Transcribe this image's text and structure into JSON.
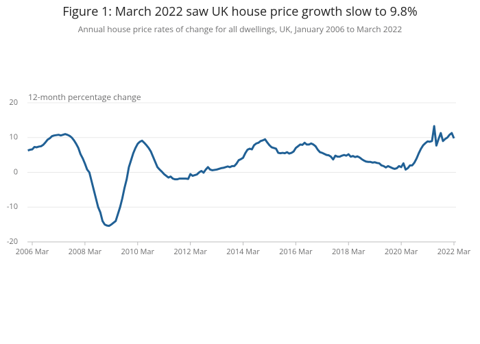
{
  "chart_data": {
    "type": "line",
    "title": "Figure 1: March 2022 saw UK house price growth slow to 9.8%",
    "subtitle": "Annual house price rates of change for all dwellings, UK, January 2006 to March 2022",
    "y_label": "12-month percentage change",
    "x": [
      "2006 Jan",
      "2006 Feb",
      "2006 Mar",
      "2006 Apr",
      "2006 May",
      "2006 Jun",
      "2006 Jul",
      "2006 Aug",
      "2006 Sep",
      "2006 Oct",
      "2006 Nov",
      "2006 Dec",
      "2007 Jan",
      "2007 Feb",
      "2007 Mar",
      "2007 Apr",
      "2007 May",
      "2007 Jun",
      "2007 Jul",
      "2007 Aug",
      "2007 Sep",
      "2007 Oct",
      "2007 Nov",
      "2007 Dec",
      "2008 Jan",
      "2008 Feb",
      "2008 Mar",
      "2008 Apr",
      "2008 May",
      "2008 Jun",
      "2008 Jul",
      "2008 Aug",
      "2008 Sep",
      "2008 Oct",
      "2008 Nov",
      "2008 Dec",
      "2009 Jan",
      "2009 Feb",
      "2009 Mar",
      "2009 Apr",
      "2009 May",
      "2009 Jun",
      "2009 Jul",
      "2009 Aug",
      "2009 Sep",
      "2009 Oct",
      "2009 Nov",
      "2009 Dec",
      "2010 Jan",
      "2010 Feb",
      "2010 Mar",
      "2010 Apr",
      "2010 May",
      "2010 Jun",
      "2010 Jul",
      "2010 Aug",
      "2010 Sep",
      "2010 Oct",
      "2010 Nov",
      "2010 Dec",
      "2011 Jan",
      "2011 Feb",
      "2011 Mar",
      "2011 Apr",
      "2011 May",
      "2011 Jun",
      "2011 Jul",
      "2011 Aug",
      "2011 Sep",
      "2011 Oct",
      "2011 Nov",
      "2011 Dec",
      "2012 Jan",
      "2012 Feb",
      "2012 Mar",
      "2012 Apr",
      "2012 May",
      "2012 Jun",
      "2012 Jul",
      "2012 Aug",
      "2012 Sep",
      "2012 Oct",
      "2012 Nov",
      "2012 Dec",
      "2013 Jan",
      "2013 Feb",
      "2013 Mar",
      "2013 Apr",
      "2013 May",
      "2013 Jun",
      "2013 Jul",
      "2013 Aug",
      "2013 Sep",
      "2013 Oct",
      "2013 Nov",
      "2013 Dec",
      "2014 Jan",
      "2014 Feb",
      "2014 Mar",
      "2014 Apr",
      "2014 May",
      "2014 Jun",
      "2014 Jul",
      "2014 Aug",
      "2014 Sep",
      "2014 Oct",
      "2014 Nov",
      "2014 Dec",
      "2015 Jan",
      "2015 Feb",
      "2015 Mar",
      "2015 Apr",
      "2015 May",
      "2015 Jun",
      "2015 Jul",
      "2015 Aug",
      "2015 Sep",
      "2015 Oct",
      "2015 Nov",
      "2015 Dec",
      "2016 Jan",
      "2016 Feb",
      "2016 Mar",
      "2016 Apr",
      "2016 May",
      "2016 Jun",
      "2016 Jul",
      "2016 Aug",
      "2016 Sep",
      "2016 Oct",
      "2016 Nov",
      "2016 Dec",
      "2017 Jan",
      "2017 Feb",
      "2017 Mar",
      "2017 Apr",
      "2017 May",
      "2017 Jun",
      "2017 Jul",
      "2017 Aug",
      "2017 Sep",
      "2017 Oct",
      "2017 Nov",
      "2017 Dec",
      "2018 Jan",
      "2018 Feb",
      "2018 Mar",
      "2018 Apr",
      "2018 May",
      "2018 Jun",
      "2018 Jul",
      "2018 Aug",
      "2018 Sep",
      "2018 Oct",
      "2018 Nov",
      "2018 Dec",
      "2019 Jan",
      "2019 Feb",
      "2019 Mar",
      "2019 Apr",
      "2019 May",
      "2019 Jun",
      "2019 Jul",
      "2019 Aug",
      "2019 Sep",
      "2019 Oct",
      "2019 Nov",
      "2019 Dec",
      "2020 Jan",
      "2020 Feb",
      "2020 Mar",
      "2020 Apr",
      "2020 May",
      "2020 Jun",
      "2020 Jul",
      "2020 Aug",
      "2020 Sep",
      "2020 Oct",
      "2020 Nov",
      "2020 Dec",
      "2021 Jan",
      "2021 Feb",
      "2021 Mar",
      "2021 Apr",
      "2021 May",
      "2021 Jun",
      "2021 Jul",
      "2021 Aug",
      "2021 Sep",
      "2021 Oct",
      "2021 Nov",
      "2021 Dec",
      "2022 Jan",
      "2022 Feb",
      "2022 Mar"
    ],
    "series": [
      {
        "name": "UK",
        "color": "#206095",
        "values": [
          6.3,
          6.5,
          6.6,
          7.3,
          7.2,
          7.4,
          7.5,
          7.9,
          8.6,
          9.4,
          9.8,
          10.4,
          10.6,
          10.7,
          10.8,
          10.6,
          10.8,
          11.0,
          10.8,
          10.5,
          10.0,
          9.2,
          8.2,
          7.0,
          5.2,
          4.0,
          2.5,
          0.8,
          0.0,
          -2.5,
          -5.0,
          -7.5,
          -10.0,
          -11.5,
          -14.0,
          -15.0,
          -15.3,
          -15.4,
          -15.0,
          -14.5,
          -14.0,
          -12.0,
          -10.0,
          -7.5,
          -4.5,
          -2.0,
          1.5,
          3.5,
          5.5,
          7.0,
          8.2,
          8.8,
          9.1,
          8.5,
          7.8,
          7.0,
          6.0,
          4.5,
          3.0,
          1.5,
          0.8,
          0.2,
          -0.5,
          -1.0,
          -1.5,
          -1.2,
          -1.8,
          -2.0,
          -2.0,
          -1.8,
          -1.8,
          -1.8,
          -1.8,
          -1.9,
          -0.5,
          -1.0,
          -0.8,
          -0.6,
          0.0,
          0.4,
          -0.1,
          0.8,
          1.5,
          0.8,
          0.6,
          0.7,
          0.8,
          1.0,
          1.2,
          1.3,
          1.5,
          1.7,
          1.5,
          1.8,
          1.8,
          2.5,
          3.5,
          3.8,
          4.2,
          5.5,
          6.5,
          6.8,
          6.6,
          7.8,
          8.3,
          8.5,
          9.0,
          9.2,
          9.5,
          8.6,
          7.8,
          7.2,
          7.0,
          6.8,
          5.6,
          5.5,
          5.6,
          5.5,
          5.8,
          5.4,
          5.6,
          6.0,
          7.0,
          7.5,
          8.0,
          7.9,
          8.5,
          8.0,
          8.0,
          8.3,
          8.0,
          7.5,
          6.5,
          5.8,
          5.6,
          5.3,
          5.0,
          4.9,
          4.5,
          3.7,
          4.8,
          4.5,
          4.5,
          4.8,
          5.0,
          4.8,
          5.2,
          4.5,
          4.7,
          4.4,
          4.6,
          4.3,
          3.8,
          3.4,
          3.1,
          3.0,
          3.0,
          2.8,
          2.9,
          2.7,
          2.6,
          2.0,
          1.8,
          1.4,
          1.8,
          1.5,
          1.2,
          1.0,
          1.2,
          1.8,
          1.5,
          2.6,
          0.8,
          1.2,
          2.0,
          2.0,
          2.8,
          4.0,
          5.5,
          6.8,
          7.8,
          8.4,
          8.9,
          8.8,
          9.0,
          13.3,
          7.7,
          9.6,
          11.3,
          9.0,
          9.6,
          10.0,
          10.8,
          11.3,
          9.8
        ]
      }
    ],
    "xticks": [
      "2006 Mar",
      "2008 Mar",
      "2010 Mar",
      "2012 Mar",
      "2014 Mar",
      "2016 Mar",
      "2018 Mar",
      "2020 Mar",
      "2022 Mar"
    ],
    "ylim": [
      -20,
      20
    ],
    "yticks": [
      -20,
      -10,
      0,
      10,
      20
    ],
    "grid": true
  }
}
